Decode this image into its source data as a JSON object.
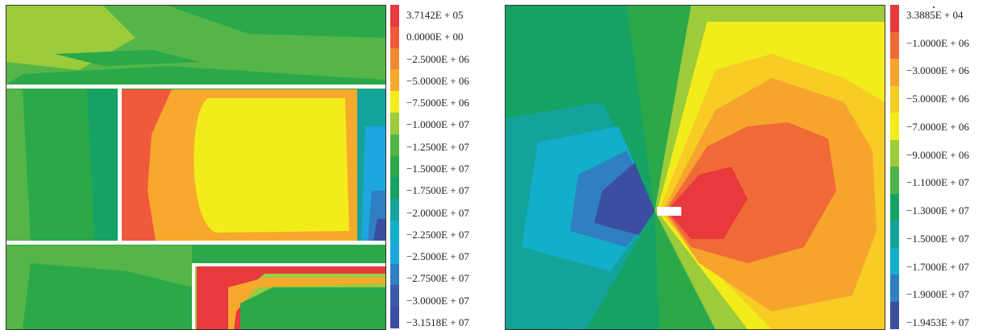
{
  "figure": {
    "left_panel": {
      "legend_labels": [
        "3.7142E + 05",
        "0.0000E + 00",
        "−2.5000E + 06",
        "−5.0000E + 06",
        "−7.5000E + 06",
        "−1.0000E + 07",
        "−1.2500E + 07",
        "−1.5000E + 07",
        "−1.7500E + 07",
        "−2.0000E + 07",
        "−2.2500E + 07",
        "−2.5000E + 07",
        "−2.7500E + 07",
        "−3.0000E + 07",
        "−3.1518E + 07"
      ],
      "legend_colors": [
        "#e8393d",
        "#ef5a3a",
        "#f38a33",
        "#f7a92e",
        "#f2ec1a",
        "#9ccb3b",
        "#55b548",
        "#2aa84a",
        "#16a265",
        "#14a39a",
        "#13aec9",
        "#1ea6df",
        "#2f7fc2",
        "#3a5aab",
        "#3b4ea0"
      ]
    },
    "right_panel": {
      "legend_labels": [
        "3.3885E + 04",
        "−1.0000E + 06",
        "−3.0000E + 06",
        "−5.0000E + 06",
        "−7.0000E + 06",
        "−9.0000E + 06",
        "−1.1000E + 07",
        "−1.3000E + 07",
        "−1.5000E + 07",
        "−1.7000E + 07",
        "−1.9000E + 07",
        "−1.9453E + 07"
      ],
      "legend_colors": [
        "#e8393d",
        "#ef6a37",
        "#f6a42e",
        "#f6cc25",
        "#f2ec1a",
        "#9ccb3b",
        "#4db547",
        "#16a265",
        "#14a39a",
        "#13aec9",
        "#2f7fc2",
        "#3b4ea0"
      ]
    }
  }
}
